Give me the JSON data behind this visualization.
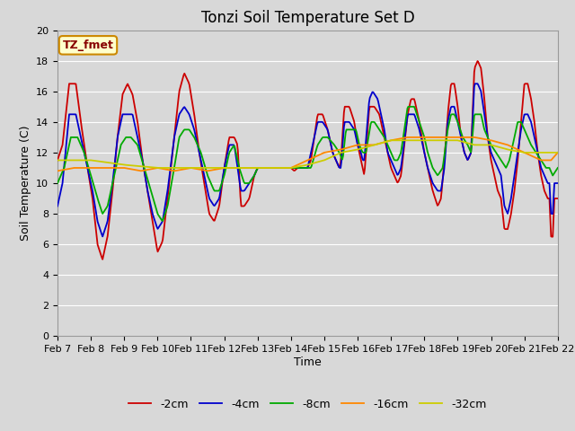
{
  "title": "Tonzi Soil Temperature Set D",
  "xlabel": "Time",
  "ylabel": "Soil Temperature (C)",
  "ylim": [
    0,
    20
  ],
  "yticks": [
    0,
    2,
    4,
    6,
    8,
    10,
    12,
    14,
    16,
    18,
    20
  ],
  "xtick_labels": [
    "Feb 7",
    "Feb 8",
    "Feb 9",
    "Feb 10",
    "Feb 11",
    "Feb 12",
    "Feb 13",
    "Feb 14",
    "Feb 15",
    "Feb 16",
    "Feb 17",
    "Feb 18",
    "Feb 19",
    "Feb 20",
    "Feb 21",
    "Feb 22"
  ],
  "legend_label": "TZ_fmet",
  "series_colors": [
    "#cc0000",
    "#0000cc",
    "#00aa00",
    "#ff8800",
    "#cccc00"
  ],
  "series_labels": [
    "-2cm",
    "-4cm",
    "-8cm",
    "-16cm",
    "-32cm"
  ],
  "bg_color": "#d8d8d8",
  "grid_color": "#ffffff",
  "annotation_bg": "#ffffcc",
  "annotation_border": "#cc8800",
  "title_fontsize": 12,
  "label_fontsize": 9,
  "tick_fontsize": 8,
  "legend_fontsize": 9
}
